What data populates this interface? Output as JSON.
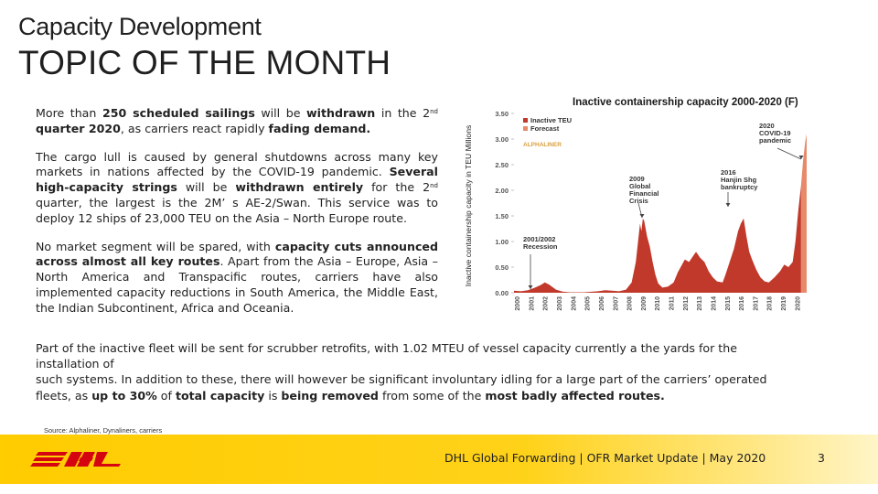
{
  "header": {
    "section": "Capacity Development",
    "title": "TOPIC OF THE MONTH"
  },
  "left_column": {
    "p1": {
      "t1": "More than ",
      "b1": "250 scheduled sailings",
      "t2": " will be ",
      "b2": "withdrawn",
      "t3": " in the 2",
      "sup": "nd",
      "b3": "quarter 2020",
      "t4": ", as carriers react rapidly ",
      "b4": "fading demand.",
      "t5": ""
    },
    "p2": {
      "t1": "The cargo lull is caused by general shutdowns across many key markets in nations affected by the COVID-19 pandemic. ",
      "b1": "Several high-capacity strings",
      "t2": " will be ",
      "b2": "withdrawn entirely",
      "t3": " for the 2",
      "sup": "nd",
      "t4": " quarter, the largest is the 2M’ s AE-2/Swan. This service was to deploy 12 ships of 23,000 TEU on the Asia – North Europe route."
    },
    "p3": {
      "t1": "No market segment will be spared, with ",
      "b1": "capacity cuts announced across almost all key routes",
      "t2": ". Apart from the Asia – Europe, Asia – North America and Transpacific routes, carriers have also implemented capacity reductions in South America, the Middle East, the Indian Subcontinent, Africa and Oceania."
    }
  },
  "bottom_paragraph": {
    "t1": "Part of the inactive fleet will be sent for scrubber retrofits, with 1.02 MTEU of vessel capacity currently a the yards for the installation of",
    "t2": "such systems. In addition to these, there will however be significant involuntary idling for a large part of the carriers’ operated fleets, as ",
    "b1": "up to 30%",
    "t3": " of ",
    "b2": "total capacity",
    "t4": " is ",
    "b3": "being removed",
    "t5": " from some of the ",
    "b4": "most badly affected routes."
  },
  "source": "Source: Alphaliner,  Dynaliners, carriers",
  "footer": {
    "text": "DHL Global Forwarding | OFR Market Update | May 2020",
    "page": "3",
    "brand_color": "#ffcc00",
    "logo_color": "#d40511"
  },
  "chart_data": {
    "type": "area",
    "title": "Inactive containership capacity 2000-2020 (F)",
    "ylabel": "Inactive containership capacity in TEU Millions",
    "ylim": [
      0,
      3.5
    ],
    "yticks": [
      "0.00",
      "0.50",
      "1.00",
      "1.50",
      "2.00",
      "2.50",
      "3.00",
      "3.50"
    ],
    "xlim": [
      2000,
      2020.9
    ],
    "xticks": [
      "2000",
      "2001",
      "2002",
      "2003",
      "2004",
      "2005",
      "2006",
      "2007",
      "2008",
      "2009",
      "2010",
      "2011",
      "2012",
      "2013",
      "2014",
      "2015",
      "2016",
      "2017",
      "2018",
      "2019",
      "2020"
    ],
    "legend": [
      "Inactive TEU",
      "Forecast"
    ],
    "legend_placement": "top-left",
    "watermark": "ALPHALINER",
    "colors": {
      "inactive": "#c0392b",
      "forecast": "#e88a6a",
      "tick_text": "#555555"
    },
    "annotations": [
      {
        "text": "2001/2002\nRecession",
        "x": 2002.0,
        "y": 0.02
      },
      {
        "text": "2009\nGlobal\nFinancial\nCrisis",
        "x": 2009.1,
        "y": 2.0
      },
      {
        "text": "2016\nHanjin Shg\nbankruptcy",
        "x": 2016.2,
        "y": 1.72
      },
      {
        "text": "2020\nCOVID-19\npandemic",
        "x": 2020.8,
        "y": 2.7
      }
    ],
    "series": [
      {
        "name": "Inactive TEU",
        "points": [
          [
            2000.0,
            0.04
          ],
          [
            2000.5,
            0.03
          ],
          [
            2001.0,
            0.05
          ],
          [
            2001.5,
            0.1
          ],
          [
            2001.9,
            0.15
          ],
          [
            2002.2,
            0.2
          ],
          [
            2002.5,
            0.16
          ],
          [
            2002.8,
            0.1
          ],
          [
            2003.0,
            0.06
          ],
          [
            2003.5,
            0.02
          ],
          [
            2004.0,
            0.01
          ],
          [
            2005.0,
            0.01
          ],
          [
            2006.0,
            0.03
          ],
          [
            2006.5,
            0.05
          ],
          [
            2007.0,
            0.04
          ],
          [
            2007.5,
            0.03
          ],
          [
            2008.0,
            0.06
          ],
          [
            2008.4,
            0.2
          ],
          [
            2008.7,
            0.6
          ],
          [
            2008.9,
            1.1
          ],
          [
            2009.0,
            1.35
          ],
          [
            2009.1,
            1.2
          ],
          [
            2009.2,
            1.45
          ],
          [
            2009.3,
            1.4
          ],
          [
            2009.5,
            1.1
          ],
          [
            2009.7,
            0.9
          ],
          [
            2009.9,
            0.6
          ],
          [
            2010.1,
            0.35
          ],
          [
            2010.3,
            0.18
          ],
          [
            2010.6,
            0.1
          ],
          [
            2011.0,
            0.12
          ],
          [
            2011.4,
            0.2
          ],
          [
            2011.7,
            0.4
          ],
          [
            2012.0,
            0.55
          ],
          [
            2012.2,
            0.65
          ],
          [
            2012.5,
            0.6
          ],
          [
            2012.8,
            0.72
          ],
          [
            2013.0,
            0.8
          ],
          [
            2013.3,
            0.68
          ],
          [
            2013.6,
            0.6
          ],
          [
            2013.9,
            0.42
          ],
          [
            2014.2,
            0.3
          ],
          [
            2014.5,
            0.22
          ],
          [
            2014.9,
            0.2
          ],
          [
            2015.1,
            0.35
          ],
          [
            2015.4,
            0.6
          ],
          [
            2015.7,
            0.85
          ],
          [
            2016.0,
            1.2
          ],
          [
            2016.2,
            1.35
          ],
          [
            2016.4,
            1.45
          ],
          [
            2016.6,
            1.1
          ],
          [
            2016.8,
            0.8
          ],
          [
            2017.0,
            0.65
          ],
          [
            2017.3,
            0.45
          ],
          [
            2017.6,
            0.3
          ],
          [
            2017.9,
            0.22
          ],
          [
            2018.2,
            0.2
          ],
          [
            2018.6,
            0.3
          ],
          [
            2019.0,
            0.42
          ],
          [
            2019.3,
            0.55
          ],
          [
            2019.6,
            0.5
          ],
          [
            2019.9,
            0.6
          ],
          [
            2020.1,
            1.0
          ],
          [
            2020.3,
            1.6
          ],
          [
            2020.5,
            2.1
          ]
        ]
      },
      {
        "name": "Forecast",
        "points": [
          [
            2020.5,
            2.1
          ],
          [
            2020.65,
            2.6
          ],
          [
            2020.8,
            2.95
          ],
          [
            2020.9,
            3.1
          ]
        ]
      }
    ]
  }
}
